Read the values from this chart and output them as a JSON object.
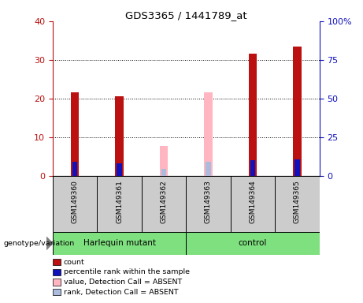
{
  "title": "GDS3365 / 1441789_at",
  "samples": [
    "GSM149360",
    "GSM149361",
    "GSM149362",
    "GSM149363",
    "GSM149364",
    "GSM149365"
  ],
  "count_values": [
    21.5,
    20.5,
    null,
    null,
    31.5,
    33.5
  ],
  "percentile_values": [
    9.0,
    8.0,
    null,
    null,
    10.0,
    10.5
  ],
  "absent_value_values": [
    null,
    null,
    7.8,
    21.5,
    null,
    null
  ],
  "absent_rank_values": [
    null,
    null,
    4.5,
    9.0,
    null,
    null
  ],
  "left_ylim": [
    0,
    40
  ],
  "right_ylim": [
    0,
    100
  ],
  "left_yticks": [
    0,
    10,
    20,
    30,
    40
  ],
  "right_yticks": [
    0,
    25,
    50,
    75,
    100
  ],
  "right_yticklabels": [
    "0",
    "25",
    "50",
    "75",
    "100%"
  ],
  "count_color": "#bb1111",
  "percentile_color": "#1111bb",
  "absent_value_color": "#ffb6c1",
  "absent_rank_color": "#aabbdd",
  "group_split": 3,
  "group_labels": [
    "Harlequin mutant",
    "control"
  ],
  "group_color": "#7fe07f",
  "sample_box_color": "#cccccc",
  "legend_items": [
    {
      "label": "count",
      "color": "#bb1111"
    },
    {
      "label": "percentile rank within the sample",
      "color": "#1111bb"
    },
    {
      "label": "value, Detection Call = ABSENT",
      "color": "#ffb6c1"
    },
    {
      "label": "rank, Detection Call = ABSENT",
      "color": "#aabbdd"
    }
  ]
}
